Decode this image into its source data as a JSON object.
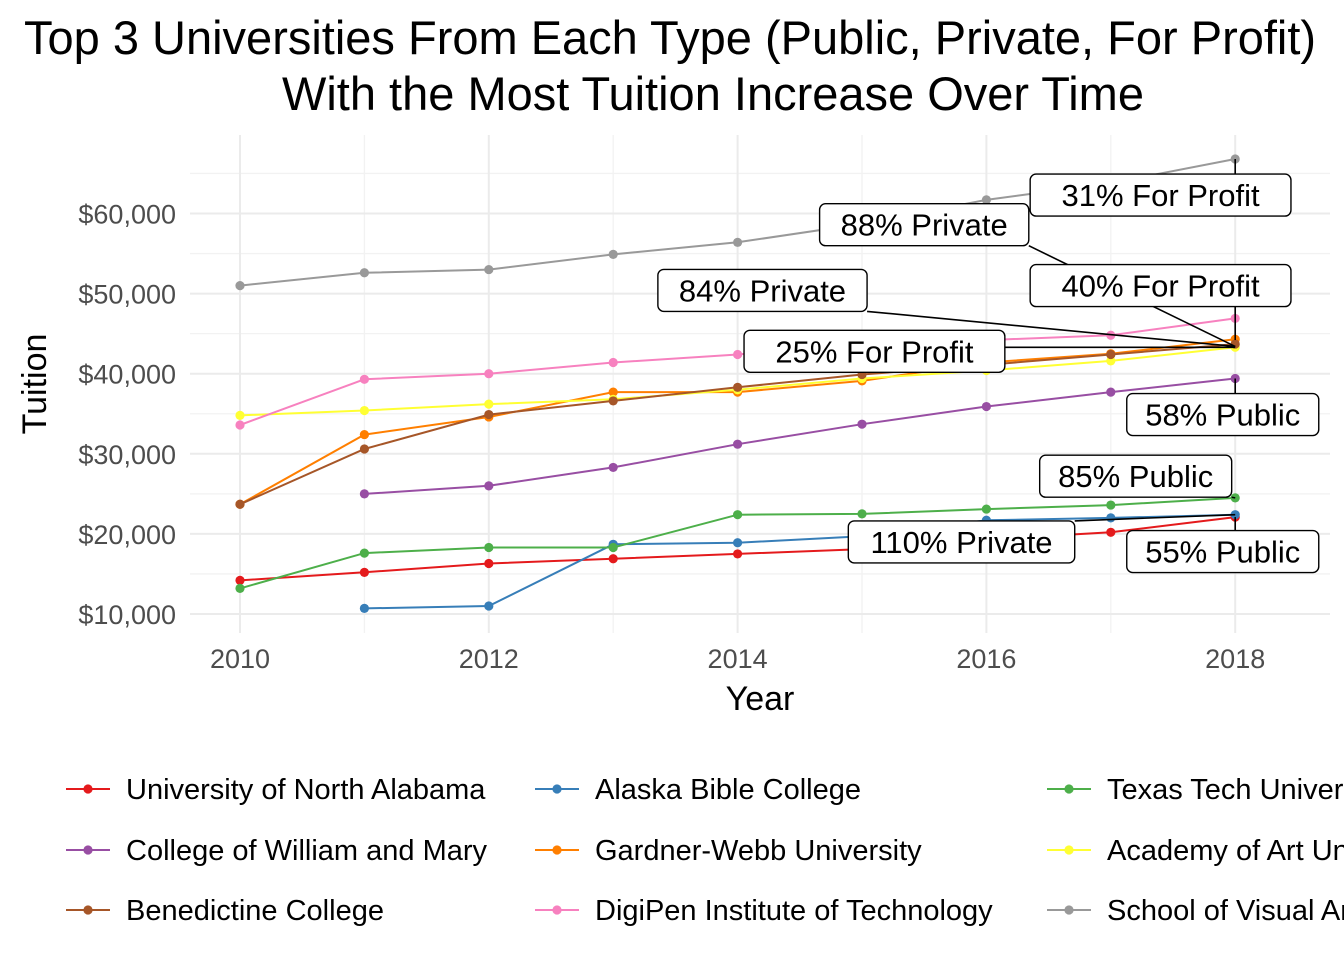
{
  "title_lines": [
    "Top 3 Universities From Each Type (Public, Private, For Profit)",
    "With the Most Tuition Increase Over Time"
  ],
  "chart_data": {
    "type": "line",
    "title": "Top 3 Universities From Each Type (Public, Private, For Profit) With the Most Tuition Increase Over Time",
    "xlabel": "Year",
    "ylabel": "Tuition",
    "xlim": [
      2009.6,
      2018.8
    ],
    "ylim": [
      9000,
      69500
    ],
    "x_ticks": [
      2010,
      2012,
      2014,
      2016,
      2018
    ],
    "y_ticks": [
      10000,
      20000,
      30000,
      40000,
      50000,
      60000
    ],
    "y_tick_labels": [
      "$10,000",
      "$20,000",
      "$30,000",
      "$40,000",
      "$50,000",
      "$60,000"
    ],
    "grid": true,
    "legend_position": "bottom",
    "series": [
      {
        "name": "University of North Alabama",
        "color": "#E41A1C",
        "x": [
          2010,
          2011,
          2012,
          2013,
          2014,
          2015,
          2016,
          2017,
          2018
        ],
        "y": [
          14200,
          15200,
          16300,
          16900,
          17500,
          18100,
          19300,
          20200,
          22100
        ]
      },
      {
        "name": "Alaska Bible College",
        "color": "#377EB8",
        "x": [
          2011,
          2012,
          2013,
          2014,
          2015,
          2016,
          2017,
          2018
        ],
        "y": [
          10700,
          11000,
          18700,
          18900,
          19700,
          21700,
          22000,
          22400
        ]
      },
      {
        "name": "Texas Tech University",
        "color": "#4DAF4A",
        "x": [
          2010,
          2011,
          2012,
          2013,
          2014,
          2015,
          2016,
          2017,
          2018
        ],
        "y": [
          13200,
          17600,
          18300,
          18300,
          22400,
          22500,
          23100,
          23600,
          24500
        ]
      },
      {
        "name": "College of William and Mary",
        "color": "#984EA3",
        "x": [
          2011,
          2012,
          2013,
          2014,
          2015,
          2016,
          2017,
          2018
        ],
        "y": [
          25000,
          26000,
          28300,
          31200,
          33700,
          35900,
          37700,
          39400
        ]
      },
      {
        "name": "Gardner-Webb University",
        "color": "#FF7F00",
        "x": [
          2010,
          2011,
          2012,
          2013,
          2014,
          2015,
          2016,
          2017,
          2018
        ],
        "y": [
          23700,
          32400,
          34600,
          37700,
          37700,
          39100,
          41400,
          42500,
          44300
        ]
      },
      {
        "name": "Academy of Art University",
        "color": "#FFFF33",
        "x": [
          2010,
          2011,
          2012,
          2013,
          2014,
          2015,
          2016,
          2017,
          2018
        ],
        "y": [
          34800,
          35400,
          36200,
          36800,
          38000,
          39400,
          40400,
          41600,
          43300
        ]
      },
      {
        "name": "Benedictine College",
        "color": "#A65628",
        "x": [
          2010,
          2011,
          2012,
          2013,
          2014,
          2015,
          2016,
          2017,
          2018
        ],
        "y": [
          23700,
          30600,
          34900,
          36600,
          38300,
          39900,
          41100,
          42400,
          43700
        ]
      },
      {
        "name": "DigiPen Institute of Technology",
        "color": "#F781BF",
        "x": [
          2010,
          2011,
          2012,
          2013,
          2014,
          2015,
          2016,
          2017,
          2018
        ],
        "y": [
          33600,
          39300,
          40000,
          41400,
          42400,
          43800,
          44200,
          44800,
          46900
        ]
      },
      {
        "name": "School of Visual Arts",
        "color": "#999999",
        "x": [
          2010,
          2011,
          2012,
          2013,
          2014,
          2015,
          2016,
          2017,
          2018
        ],
        "y": [
          51000,
          52600,
          53000,
          54900,
          56400,
          58700,
          61700,
          63800,
          66800
        ]
      }
    ],
    "annotations": [
      {
        "text": "31% For Profit",
        "target_x": 2018,
        "target_y": 66800,
        "label_x": 2017.4,
        "label_y": 62300
      },
      {
        "text": "88% Private",
        "target_x": 2018,
        "target_y": 43400,
        "label_x": 2015.5,
        "label_y": 58600
      },
      {
        "text": "40% For Profit",
        "target_x": 2018,
        "target_y": 44200,
        "label_x": 2017.4,
        "label_y": 51000
      },
      {
        "text": "84% Private",
        "target_x": 2018,
        "target_y": 43400,
        "label_x": 2014.2,
        "label_y": 50400
      },
      {
        "text": "25% For Profit",
        "target_x": 2018,
        "target_y": 43300,
        "label_x": 2015.1,
        "label_y": 42800
      },
      {
        "text": "58% Public",
        "target_x": 2018,
        "target_y": 39400,
        "label_x": 2017.9,
        "label_y": 34900
      },
      {
        "text": "85% Public",
        "target_x": 2018,
        "target_y": 24500,
        "label_x": 2017.2,
        "label_y": 27200
      },
      {
        "text": "110% Private",
        "target_x": 2018,
        "target_y": 22400,
        "label_x": 2015.8,
        "label_y": 19000
      },
      {
        "text": "55% Public",
        "target_x": 2018,
        "target_y": 22100,
        "label_x": 2017.9,
        "label_y": 17800
      }
    ]
  }
}
